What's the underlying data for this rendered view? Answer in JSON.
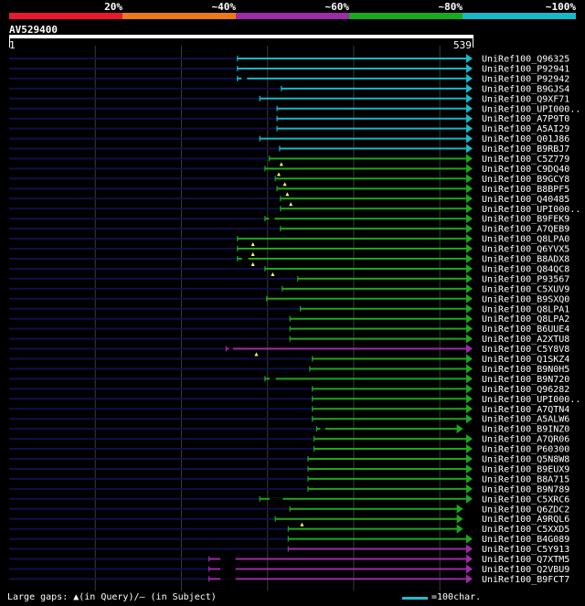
{
  "legend": {
    "labels": [
      "20%",
      "~40%",
      "~60%",
      "~80%",
      "~100%"
    ],
    "colors": [
      "#e8182e",
      "#e87a1c",
      "#9c2ca8",
      "#1ca81c",
      "#19b8c8"
    ]
  },
  "query": {
    "name": "AV529400",
    "start": "1",
    "end": "539",
    "length": 539
  },
  "palette": {
    "cyan": "#19b8c8",
    "green": "#1ca81c",
    "magenta": "#9c2ca8",
    "dark": "#10104a",
    "grid": "#3a3a3a"
  },
  "hits": [
    {
      "label": "UniRef100_Q96325",
      "color": "cyan",
      "start": 266,
      "end": 539
    },
    {
      "label": "UniRef100_P92941",
      "color": "cyan",
      "start": 266,
      "end": 539
    },
    {
      "label": "UniRef100_P92942",
      "color": "cyan",
      "start": 266,
      "end": 539,
      "gaps": [
        [
          266,
          282
        ]
      ]
    },
    {
      "label": "UniRef100_B9GJS4",
      "color": "cyan",
      "start": 317,
      "end": 539
    },
    {
      "label": "UniRef100_Q9XF71",
      "color": "cyan",
      "start": 292,
      "end": 539
    },
    {
      "label": "UniRef100_UPI000..",
      "color": "cyan",
      "start": 312,
      "end": 539
    },
    {
      "label": "UniRef100_A7P9T0",
      "color": "cyan",
      "start": 312,
      "end": 539
    },
    {
      "label": "UniRef100_A5AI29",
      "color": "cyan",
      "start": 312,
      "end": 539
    },
    {
      "label": "UniRef100_Q01J86",
      "color": "cyan",
      "start": 292,
      "end": 539
    },
    {
      "label": "UniRef100_B9RBJ7",
      "color": "cyan",
      "start": 315,
      "end": 539
    },
    {
      "label": "UniRef100_C5Z779",
      "color": "green",
      "start": 303,
      "end": 539,
      "marks": [
        317
      ]
    },
    {
      "label": "UniRef100_C9DQ40",
      "color": "green",
      "start": 298,
      "end": 539,
      "marks": [
        314
      ]
    },
    {
      "label": "UniRef100_B9GCY8",
      "color": "green",
      "start": 310,
      "end": 539,
      "marks": [
        321
      ]
    },
    {
      "label": "UniRef100_B8BPF5",
      "color": "green",
      "start": 312,
      "end": 539,
      "marks": [
        324
      ]
    },
    {
      "label": "UniRef100_Q40485",
      "color": "green",
      "start": 316,
      "end": 539,
      "marks": [
        328
      ]
    },
    {
      "label": "UniRef100_UPI000..",
      "color": "green",
      "start": 316,
      "end": 539
    },
    {
      "label": "UniRef100_B9FEK9",
      "color": "green",
      "start": 298,
      "end": 539,
      "gaps": [
        [
          298,
          314
        ]
      ]
    },
    {
      "label": "UniRef100_A7QEB9",
      "color": "green",
      "start": 316,
      "end": 539
    },
    {
      "label": "UniRef100_Q8LPA0",
      "color": "green",
      "start": 266,
      "end": 539,
      "marks": [
        284
      ]
    },
    {
      "label": "UniRef100_Q6YVX5",
      "color": "green",
      "start": 266,
      "end": 539,
      "marks": [
        284
      ]
    },
    {
      "label": "UniRef100_B8ADX8",
      "color": "green",
      "start": 266,
      "end": 539,
      "marks": [
        284
      ],
      "gaps": [
        [
          266,
          284
        ]
      ]
    },
    {
      "label": "UniRef100_Q84QC8",
      "color": "green",
      "start": 298,
      "end": 539,
      "marks": [
        307
      ]
    },
    {
      "label": "UniRef100_P93567",
      "color": "green",
      "start": 336,
      "end": 539
    },
    {
      "label": "UniRef100_C5XUV9",
      "color": "green",
      "start": 318,
      "end": 539
    },
    {
      "label": "UniRef100_B9SXQ0",
      "color": "green",
      "start": 300,
      "end": 539
    },
    {
      "label": "UniRef100_Q8LPA1",
      "color": "green",
      "start": 339,
      "end": 539
    },
    {
      "label": "UniRef100_Q8LPA2",
      "color": "green",
      "start": 327,
      "end": 539
    },
    {
      "label": "UniRef100_B6UUE4",
      "color": "green",
      "start": 327,
      "end": 539
    },
    {
      "label": "UniRef100_A2XTU8",
      "color": "green",
      "start": 327,
      "end": 539
    },
    {
      "label": "UniRef100_C5Y8V8",
      "color": "magenta",
      "start": 253,
      "end": 539,
      "marks": [
        288
      ],
      "gaps": [
        [
          253,
          264
        ]
      ]
    },
    {
      "label": "UniRef100_Q1SKZ4",
      "color": "green",
      "start": 353,
      "end": 539
    },
    {
      "label": "UniRef100_B9N0H5",
      "color": "green",
      "start": 350,
      "end": 539
    },
    {
      "label": "UniRef100_B9N720",
      "color": "green",
      "start": 298,
      "end": 539,
      "gaps": [
        [
          298,
          316
        ]
      ]
    },
    {
      "label": "UniRef100_Q96282",
      "color": "green",
      "start": 353,
      "end": 539
    },
    {
      "label": "UniRef100_UPI000..",
      "color": "green",
      "start": 353,
      "end": 539
    },
    {
      "label": "UniRef100_A7QTN4",
      "color": "green",
      "start": 353,
      "end": 539
    },
    {
      "label": "UniRef100_A5ALW6",
      "color": "green",
      "start": 353,
      "end": 539
    },
    {
      "label": "UniRef100_B9INZ0",
      "color": "green",
      "start": 358,
      "end": 528,
      "gaps": [
        [
          358,
          372
        ]
      ]
    },
    {
      "label": "UniRef100_A7QR06",
      "color": "green",
      "start": 355,
      "end": 539
    },
    {
      "label": "UniRef100_P60300",
      "color": "green",
      "start": 355,
      "end": 539
    },
    {
      "label": "UniRef100_Q5N8W8",
      "color": "green",
      "start": 348,
      "end": 539
    },
    {
      "label": "UniRef100_B9EUX9",
      "color": "green",
      "start": 348,
      "end": 539
    },
    {
      "label": "UniRef100_B8A715",
      "color": "green",
      "start": 348,
      "end": 539
    },
    {
      "label": "UniRef100_B9N789",
      "color": "green",
      "start": 348,
      "end": 539
    },
    {
      "label": "UniRef100_C5XRC6",
      "color": "green",
      "start": 292,
      "end": 539,
      "gaps": [
        [
          292,
          330
        ]
      ]
    },
    {
      "label": "UniRef100_Q6ZDC2",
      "color": "green",
      "start": 327,
      "end": 528
    },
    {
      "label": "UniRef100_A9RQL6",
      "color": "green",
      "start": 310,
      "end": 528,
      "marks": [
        341
      ]
    },
    {
      "label": "UniRef100_C5XXD5",
      "color": "green",
      "start": 325,
      "end": 528
    },
    {
      "label": "UniRef100_B4G089",
      "color": "green",
      "start": 325,
      "end": 539
    },
    {
      "label": "UniRef100_C5Y913",
      "color": "magenta",
      "start": 325,
      "end": 539
    },
    {
      "label": "UniRef100_Q7XTM5",
      "color": "magenta",
      "start": 233,
      "end": 539,
      "gaps": [
        [
          233,
          277
        ]
      ]
    },
    {
      "label": "UniRef100_Q2VBU9",
      "color": "magenta",
      "start": 233,
      "end": 539,
      "gaps": [
        [
          233,
          277
        ]
      ]
    },
    {
      "label": "UniRef100_B9FCT7",
      "color": "magenta",
      "start": 233,
      "end": 539,
      "gaps": [
        [
          233,
          277
        ]
      ]
    }
  ],
  "footer": {
    "gaps_text": "Large gaps: ▲(in Query)/– (in Subject)",
    "scale_text": "=100char."
  }
}
